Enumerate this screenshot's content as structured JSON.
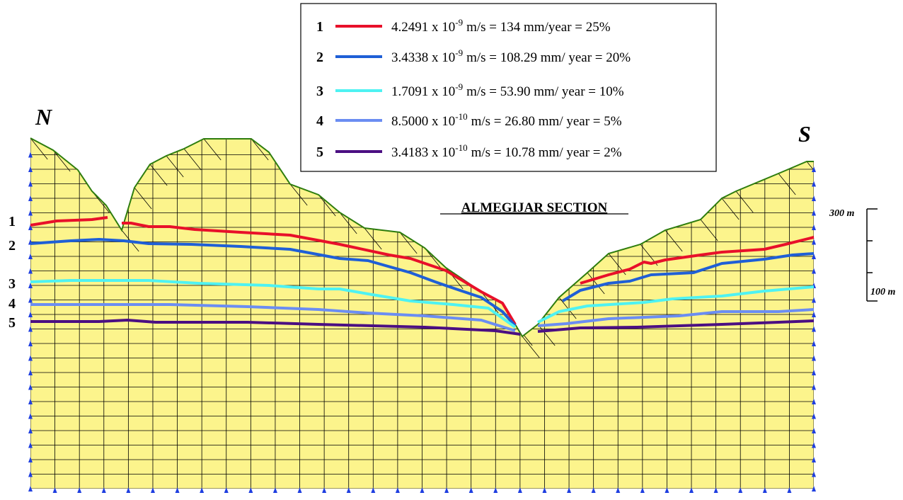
{
  "compass": {
    "north": "N",
    "south": "S"
  },
  "section_title": "ALMEGIJAR SECTION",
  "scale": {
    "upper": "300 m",
    "lower": "100 m"
  },
  "line_labels": [
    "1",
    "2",
    "3",
    "4",
    "5"
  ],
  "legend": [
    {
      "number": "1",
      "color": "#e8102a",
      "mantissa": "4.2491 x 10",
      "exponent": "-9",
      "rest": "m/s = 134 mm/year = 25%"
    },
    {
      "number": "2",
      "color": "#1f5fd6",
      "mantissa": "3.4338 x 10",
      "exponent": "-9",
      "rest": "m/s = 108.29 mm/ year = 20%"
    },
    {
      "number": "3",
      "color": "#4ef2f2",
      "mantissa": "1.7091 x 10",
      "exponent": "-9",
      "rest": "m/s = 53.90 mm/ year = 10%"
    },
    {
      "number": "4",
      "color": "#6b8df2",
      "mantissa": "8.5000 x 10",
      "exponent": "-10",
      "rest": "m/s = 26.80 mm/ year = 5%"
    },
    {
      "number": "5",
      "color": "#4b0f82",
      "mantissa": "3.4183 x 10",
      "exponent": "-10",
      "rest": "m/s = 10.78 mm/ year = 2%"
    }
  ]
}
